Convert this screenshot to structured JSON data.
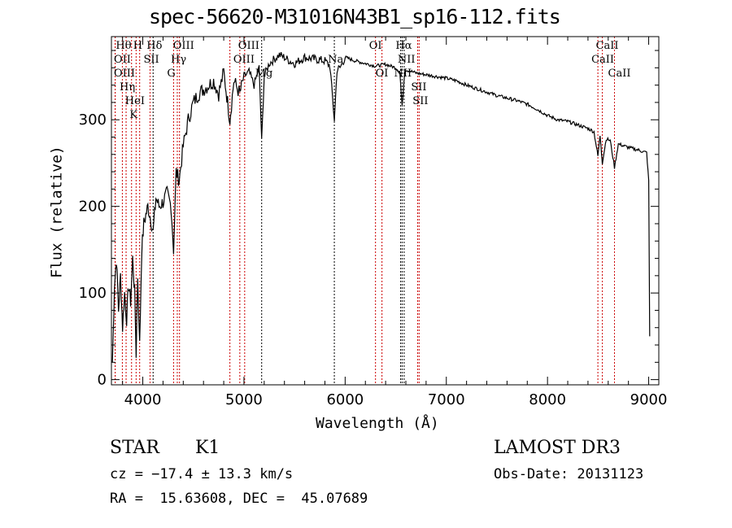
{
  "chart_data": {
    "type": "line",
    "title": "spec-56620-M31016N43B1_sp16-112.fits",
    "xlabel": "Wavelength (Å)",
    "ylabel": "Flux (relative)",
    "xlim": [
      3690,
      9100
    ],
    "ylim": [
      -6,
      396
    ],
    "xticks": [
      4000,
      5000,
      6000,
      7000,
      8000,
      9000
    ],
    "xtick_labels": [
      "4000",
      "5000",
      "6000",
      "7000",
      "8000",
      "9000"
    ],
    "yticks": [
      0,
      100,
      200,
      300
    ],
    "ytick_labels": [
      "0",
      "100",
      "200",
      "300"
    ],
    "grid": false,
    "series": [
      {
        "name": "flux",
        "color": "#000000",
        "x": [
          3700,
          3720,
          3740,
          3760,
          3780,
          3800,
          3820,
          3840,
          3860,
          3880,
          3900,
          3920,
          3934,
          3950,
          3969,
          3990,
          4010,
          4030,
          4050,
          4080,
          4102,
          4130,
          4160,
          4200,
          4240,
          4280,
          4304,
          4330,
          4360,
          4400,
          4450,
          4500,
          4550,
          4600,
          4650,
          4700,
          4750,
          4800,
          4861,
          4900,
          4959,
          5000,
          5050,
          5100,
          5150,
          5175,
          5200,
          5250,
          5300,
          5350,
          5400,
          5450,
          5500,
          5600,
          5700,
          5800,
          5850,
          5893,
          5920,
          5950,
          6000,
          6100,
          6200,
          6300,
          6400,
          6500,
          6540,
          6563,
          6590,
          6650,
          6700,
          6800,
          6900,
          7000,
          7100,
          7200,
          7300,
          7400,
          7500,
          7600,
          7700,
          7800,
          7900,
          8000,
          8100,
          8200,
          8300,
          8400,
          8460,
          8498,
          8520,
          8542,
          8580,
          8620,
          8662,
          8700,
          8800,
          8900,
          8980,
          9000,
          9010
        ],
        "y": [
          20,
          110,
          140,
          80,
          120,
          60,
          100,
          70,
          110,
          90,
          140,
          100,
          30,
          120,
          40,
          150,
          180,
          190,
          200,
          185,
          170,
          210,
          200,
          205,
          215,
          200,
          150,
          240,
          230,
          270,
          300,
          320,
          330,
          335,
          340,
          345,
          330,
          355,
          300,
          345,
          330,
          350,
          355,
          340,
          360,
          275,
          350,
          365,
          370,
          375,
          372,
          368,
          365,
          372,
          370,
          368,
          362,
          300,
          358,
          360,
          372,
          368,
          365,
          362,
          364,
          360,
          356,
          315,
          358,
          356,
          354,
          352,
          350,
          348,
          345,
          340,
          336,
          332,
          328,
          325,
          322,
          318,
          312,
          305,
          300,
          298,
          294,
          290,
          286,
          258,
          282,
          250,
          278,
          276,
          245,
          272,
          268,
          265,
          262,
          230,
          50
        ]
      }
    ],
    "lines": [
      {
        "wl": 3727,
        "label": "OII",
        "row": 2,
        "color": "#cc0000"
      },
      {
        "wl": 3727,
        "label": "OIII",
        "row": 3,
        "color": "#cc0000"
      },
      {
        "wl": 3798,
        "label": "Hθ",
        "row": 1,
        "color": "#cc0000"
      },
      {
        "wl": 3835,
        "label": "Hη",
        "row": 3,
        "color": "#cc0000"
      },
      {
        "wl": 3889,
        "label": "HeI",
        "row": 2,
        "color": "#cc0000"
      },
      {
        "wl": 3934,
        "label": "K",
        "row": 1,
        "color": "#cc0000"
      },
      {
        "wl": 3969,
        "label": "H",
        "row": 3,
        "color": "#cc0000"
      },
      {
        "wl": 4072,
        "label": "SII",
        "row": 2,
        "color": "#cc0000"
      },
      {
        "wl": 4102,
        "label": "Hδ",
        "row": 1,
        "color": "#000000"
      },
      {
        "wl": 4304,
        "label": "G",
        "row": 3,
        "color": "#cc0000"
      },
      {
        "wl": 4341,
        "label": "Hγ",
        "row": 2,
        "color": "#cc0000"
      },
      {
        "wl": 4363,
        "label": "OIII",
        "row": 1,
        "color": "#cc0000"
      },
      {
        "wl": 4861,
        "label": "",
        "row": 1,
        "color": "#cc0000"
      },
      {
        "wl": 4959,
        "label": "OIII",
        "row": 2,
        "color": "#cc0000"
      },
      {
        "wl": 5007,
        "label": "OIII",
        "row": 1,
        "color": "#cc0000"
      },
      {
        "wl": 5175,
        "label": "Mg",
        "row": 3,
        "color": "#000000"
      },
      {
        "wl": 5893,
        "label": "Na",
        "row": 2,
        "color": "#000000"
      },
      {
        "wl": 6300,
        "label": "OI",
        "row": 1,
        "color": "#cc0000"
      },
      {
        "wl": 6364,
        "label": "OI",
        "row": 3,
        "color": "#cc0000"
      },
      {
        "wl": 6548,
        "label": "NII",
        "row": 3,
        "color": "#000000"
      },
      {
        "wl": 6563,
        "label": "Hα",
        "row": 1,
        "color": "#000000"
      },
      {
        "wl": 6583,
        "label": "NII",
        "row": 2,
        "color": "#000000"
      },
      {
        "wl": 6716,
        "label": "SII",
        "row": 1,
        "color": "#cc0000"
      },
      {
        "wl": 6731,
        "label": "SII",
        "row": 3,
        "color": "#cc0000"
      },
      {
        "wl": 8498,
        "label": "CaII",
        "row": 2,
        "color": "#cc0000"
      },
      {
        "wl": 8542,
        "label": "CaII",
        "row": 1,
        "color": "#cc0000"
      },
      {
        "wl": 8662,
        "label": "CaII",
        "row": 3,
        "color": "#cc0000"
      }
    ]
  },
  "info": {
    "class": "STAR",
    "subclass": "K1",
    "cz": "cz = −17.4 ± 13.3 km/s",
    "radec": "RA =  15.63608, DEC =  45.07689",
    "survey": "LAMOST DR3",
    "obsdate": "Obs-Date: 20131123"
  }
}
